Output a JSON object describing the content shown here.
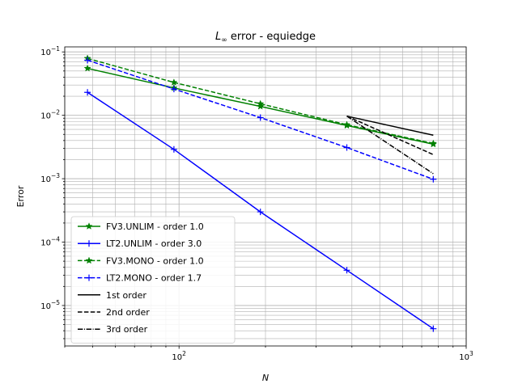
{
  "chart_data": {
    "type": "line",
    "title": "L∞ error - equiedge",
    "title_main": "L",
    "title_sub": "∞",
    "title_rest": " error - equiedge",
    "xlabel": "N",
    "ylabel": "Error",
    "xscale": "log",
    "yscale": "log",
    "xlim": [
      40,
      1000
    ],
    "ylim": [
      2.3e-06,
      0.12
    ],
    "grid": true,
    "legend_position": "lower-left",
    "x_tick_labels": [
      {
        "value": 100,
        "base": "10",
        "exp": "2"
      },
      {
        "value": 1000,
        "base": "10",
        "exp": "3"
      }
    ],
    "y_tick_labels": [
      {
        "value": 1e-05,
        "base": "10",
        "exp": "−5"
      },
      {
        "value": 0.0001,
        "base": "10",
        "exp": "−4"
      },
      {
        "value": 0.001,
        "base": "10",
        "exp": "−3"
      },
      {
        "value": 0.01,
        "base": "10",
        "exp": "−2"
      },
      {
        "value": 0.1,
        "base": "10",
        "exp": "−1"
      }
    ],
    "series": [
      {
        "name": "FV3.UNLIM - order 1.0",
        "color": "#008000",
        "dash": "solid",
        "marker": "star",
        "x": [
          48,
          96,
          192,
          384,
          768
        ],
        "y": [
          0.055,
          0.027,
          0.0138,
          0.0069,
          0.0035
        ]
      },
      {
        "name": "LT2.UNLIM - order 3.0",
        "color": "#0000ff",
        "dash": "solid",
        "marker": "plus",
        "x": [
          48,
          96,
          192,
          384,
          768
        ],
        "y": [
          0.023,
          0.0029,
          0.0003,
          3.6e-05,
          4.3e-06
        ]
      },
      {
        "name": "FV3.MONO - order 1.0",
        "color": "#008000",
        "dash": "dashed",
        "marker": "star",
        "x": [
          48,
          96,
          192,
          384,
          768
        ],
        "y": [
          0.079,
          0.033,
          0.0152,
          0.0071,
          0.0036
        ]
      },
      {
        "name": "LT2.MONO - order 1.7",
        "color": "#0000ff",
        "dash": "dashed",
        "marker": "plus",
        "x": [
          48,
          96,
          192,
          384,
          768
        ],
        "y": [
          0.074,
          0.026,
          0.0092,
          0.0031,
          0.00098
        ]
      },
      {
        "name": "1st order",
        "color": "#000000",
        "dash": "solid",
        "marker": "none",
        "x": [
          384,
          768
        ],
        "y": [
          0.0097,
          0.00485
        ]
      },
      {
        "name": "2nd order",
        "color": "#000000",
        "dash": "dashed",
        "marker": "none",
        "x": [
          384,
          768
        ],
        "y": [
          0.0097,
          0.0024
        ]
      },
      {
        "name": "3rd order",
        "color": "#000000",
        "dash": "dashdot",
        "marker": "none",
        "x": [
          384,
          768
        ],
        "y": [
          0.0097,
          0.0012
        ]
      }
    ]
  }
}
